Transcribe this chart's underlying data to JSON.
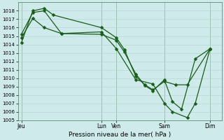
{
  "xlabel": "Pression niveau de la mer( hPa )",
  "ylim": [
    1005,
    1019
  ],
  "yticks": [
    1005,
    1006,
    1007,
    1008,
    1009,
    1010,
    1011,
    1012,
    1013,
    1014,
    1015,
    1016,
    1017,
    1018
  ],
  "xtick_labels": [
    "Jeu",
    "Lun",
    "Ven",
    "Sam",
    "Dim"
  ],
  "xtick_positions": [
    0,
    7.0,
    8.3,
    12.5,
    16.5
  ],
  "xlim": [
    -0.3,
    17.5
  ],
  "background_color": "#ceeaea",
  "grid_color": "#b0d4cc",
  "line_color": "#1a5c1a",
  "vlines_x": [
    0,
    7.0,
    8.3,
    12.5,
    16.5
  ],
  "series1_x": [
    0,
    1.0,
    2.0,
    2.8,
    7.0,
    8.3,
    9.0,
    10.0,
    10.8,
    11.5,
    12.5,
    13.5,
    14.5,
    16.5
  ],
  "series1_y": [
    1014.2,
    1018.0,
    1018.3,
    1017.5,
    1016.0,
    1014.8,
    1013.4,
    1010.2,
    1009.2,
    1008.6,
    1009.6,
    1009.2,
    1009.2,
    1013.5
  ],
  "series2_x": [
    0,
    1.0,
    2.0,
    3.5,
    7.0,
    8.3,
    9.0,
    10.0,
    10.8,
    11.5,
    12.5,
    13.2,
    14.0,
    15.2,
    16.5
  ],
  "series2_y": [
    1015.2,
    1017.8,
    1018.0,
    1015.3,
    1015.2,
    1014.5,
    1013.1,
    1010.5,
    1009.1,
    1008.5,
    1009.8,
    1007.2,
    1006.3,
    1012.3,
    1013.5
  ],
  "series3_x": [
    0,
    1.0,
    2.0,
    3.5,
    7.0,
    8.3,
    10.0,
    11.5,
    12.5,
    13.2,
    14.5,
    15.2,
    16.5
  ],
  "series3_y": [
    1014.8,
    1017.1,
    1016.0,
    1015.3,
    1015.5,
    1013.5,
    1009.8,
    1009.3,
    1007.0,
    1006.0,
    1005.3,
    1007.0,
    1013.5
  ],
  "marker": "D",
  "marker_size": 2.5,
  "linewidth": 0.9
}
